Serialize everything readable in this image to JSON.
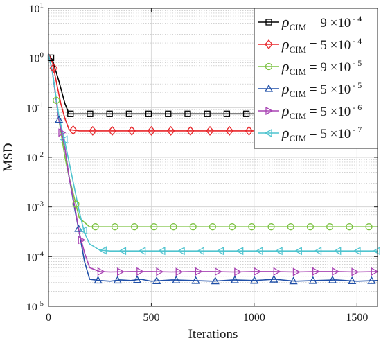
{
  "chart_data": {
    "type": "line",
    "title": "",
    "xlabel": "Iterations",
    "ylabel": "MSD",
    "xlim": [
      0,
      1600
    ],
    "ylim": [
      1e-05,
      10
    ],
    "yscale": "log",
    "grid": true,
    "legend_position": "top-right",
    "x_ticks": [
      0,
      500,
      1000,
      1500
    ],
    "x_tick_labels": [
      "0",
      "500",
      "1000",
      "1500"
    ],
    "y_ticks": [
      1e-05,
      0.0001,
      0.001,
      0.01,
      0.1,
      1,
      10
    ],
    "y_tick_labels": [
      {
        "base": "10",
        "exp": "-5"
      },
      {
        "base": "10",
        "exp": "-4"
      },
      {
        "base": "10",
        "exp": "-3"
      },
      {
        "base": "10",
        "exp": "-2"
      },
      {
        "base": "10",
        "exp": "-1"
      },
      {
        "base": "10",
        "exp": "0"
      },
      {
        "base": "10",
        "exp": "1"
      }
    ],
    "series": [
      {
        "name": "ρCIM = 9 ×10-4",
        "label_symbol": "ρ",
        "label_sub": "CIM",
        "label_value": "= 9 ×10",
        "label_exp": "- 4",
        "color": "#000000",
        "marker": "square",
        "x": [
          0,
          20,
          50,
          80,
          100,
          150,
          200,
          300,
          400,
          500,
          600,
          700,
          800,
          900,
          1000,
          1100,
          1200,
          1300,
          1400,
          1500,
          1600
        ],
        "y": [
          1.2,
          0.9,
          0.35,
          0.12,
          0.075,
          0.075,
          0.075,
          0.075,
          0.075,
          0.075,
          0.075,
          0.075,
          0.075,
          0.075,
          0.075,
          0.075,
          0.075,
          0.075,
          0.075,
          0.075,
          0.075
        ]
      },
      {
        "name": "ρCIM = 5 ×10-4",
        "label_symbol": "ρ",
        "label_sub": "CIM",
        "label_value": "= 5 ×10",
        "label_exp": "- 4",
        "color": "#e8262a",
        "marker": "diamond",
        "x": [
          0,
          20,
          40,
          60,
          80,
          100,
          150,
          200,
          300,
          400,
          500,
          600,
          700,
          800,
          900,
          1000,
          1100,
          1200,
          1300,
          1400,
          1500,
          1600
        ],
        "y": [
          1.2,
          0.8,
          0.3,
          0.12,
          0.06,
          0.036,
          0.034,
          0.034,
          0.034,
          0.034,
          0.034,
          0.034,
          0.034,
          0.034,
          0.034,
          0.034,
          0.034,
          0.034,
          0.034,
          0.034,
          0.034,
          0.034
        ]
      },
      {
        "name": "ρCIM = 9 ×10-5",
        "label_symbol": "ρ",
        "label_sub": "CIM",
        "label_value": "= 9 ×10",
        "label_exp": "- 5",
        "color": "#7cc242",
        "marker": "circle",
        "x": [
          0,
          20,
          50,
          80,
          100,
          150,
          200,
          250,
          300,
          400,
          500,
          600,
          700,
          800,
          900,
          1000,
          1100,
          1200,
          1300,
          1400,
          1500,
          1600
        ],
        "y": [
          1.2,
          0.5,
          0.06,
          0.01,
          0.004,
          0.0006,
          0.0004,
          0.0004,
          0.0004,
          0.0004,
          0.0004,
          0.0004,
          0.0004,
          0.0004,
          0.0004,
          0.0004,
          0.0004,
          0.0004,
          0.0004,
          0.0004,
          0.0004,
          0.0004
        ]
      },
      {
        "name": "ρCIM = 5 ×10-5",
        "label_symbol": "ρ",
        "label_sub": "CIM",
        "label_value": "= 5 ×10",
        "label_exp": "- 5",
        "color": "#1f4fa8",
        "marker": "triangle-up",
        "x": [
          0,
          20,
          50,
          80,
          100,
          130,
          150,
          175,
          200,
          250,
          300,
          350,
          400,
          450,
          500,
          600,
          700,
          800,
          900,
          1000,
          1100,
          1200,
          1300,
          1400,
          1500,
          1600
        ],
        "y": [
          1.2,
          0.5,
          0.06,
          0.015,
          0.004,
          0.0008,
          0.0003,
          8e-05,
          3.5e-05,
          3.3e-05,
          3.2e-05,
          3.4e-05,
          3.3e-05,
          3.5e-05,
          3.2e-05,
          3.4e-05,
          3.3e-05,
          3.2e-05,
          3.4e-05,
          3.3e-05,
          3.5e-05,
          3.2e-05,
          3.3e-05,
          3.4e-05,
          3.2e-05,
          3.3e-05
        ]
      },
      {
        "name": "ρCIM = 5 ×10-6",
        "label_symbol": "ρ",
        "label_sub": "CIM",
        "label_value": "= 5 ×10",
        "label_exp": "- 6",
        "color": "#a843b3",
        "marker": "triangle-right",
        "x": [
          0,
          20,
          50,
          80,
          100,
          130,
          150,
          175,
          200,
          250,
          300,
          400,
          500,
          600,
          700,
          800,
          900,
          1000,
          1100,
          1200,
          1300,
          1400,
          1500,
          1600
        ],
        "y": [
          1.2,
          0.5,
          0.06,
          0.015,
          0.004,
          0.0009,
          0.0003,
          0.00012,
          6e-05,
          5e-05,
          4.9e-05,
          5e-05,
          5e-05,
          4.9e-05,
          5e-05,
          5e-05,
          4.9e-05,
          5e-05,
          5e-05,
          4.9e-05,
          5e-05,
          5e-05,
          4.9e-05,
          5e-05
        ]
      },
      {
        "name": "ρCIM = 5 ×10-7",
        "label_symbol": "ρ",
        "label_sub": "CIM",
        "label_value": "= 5 ×10",
        "label_exp": "- 7",
        "color": "#4fc4cf",
        "marker": "triangle-left",
        "x": [
          0,
          20,
          50,
          80,
          100,
          130,
          150,
          175,
          200,
          250,
          300,
          400,
          500,
          600,
          700,
          800,
          900,
          1000,
          1100,
          1200,
          1300,
          1400,
          1500,
          1600
        ],
        "y": [
          1.2,
          0.5,
          0.07,
          0.02,
          0.008,
          0.002,
          0.0008,
          0.0003,
          0.00018,
          0.000135,
          0.00013,
          0.00013,
          0.00013,
          0.00013,
          0.00013,
          0.00013,
          0.00013,
          0.00013,
          0.00013,
          0.00013,
          0.00013,
          0.00013,
          0.00013,
          0.00013
        ]
      }
    ]
  }
}
